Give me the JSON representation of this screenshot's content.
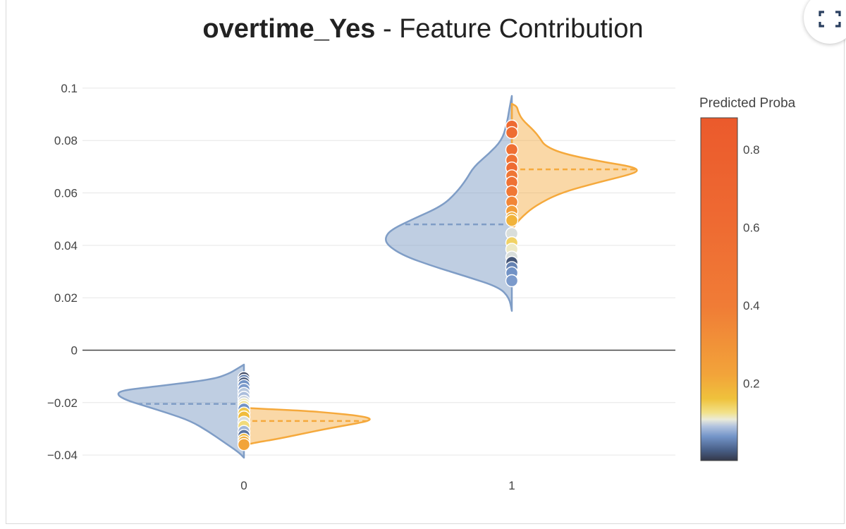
{
  "title": {
    "bold": "overtime_Yes",
    "rest": " - Feature Contribution"
  },
  "expand_icon": "expand-icon",
  "chart_data": {
    "type": "violin",
    "title": "overtime_Yes - Feature Contribution",
    "categories": [
      "0",
      "1"
    ],
    "ylim": [
      -0.044,
      0.104
    ],
    "yticks": [
      0.1,
      0.08,
      0.06,
      0.04,
      0.02,
      0,
      -0.02,
      -0.04
    ],
    "ytick_labels": [
      "0.1",
      "0.08",
      "0.06",
      "0.04",
      "0.02",
      "0",
      "−0.02",
      "−0.04"
    ],
    "grid": true,
    "zero_line": true,
    "violins": [
      {
        "category": "0",
        "side": "negative",
        "color": "#7f9dc6",
        "median": -0.0205,
        "profile": [
          [
            -0.041,
            0.0
          ],
          [
            -0.039,
            0.04
          ],
          [
            -0.035,
            0.16
          ],
          [
            -0.031,
            0.28
          ],
          [
            -0.027,
            0.42
          ],
          [
            -0.024,
            0.6
          ],
          [
            -0.021,
            0.8
          ],
          [
            -0.019,
            0.93
          ],
          [
            -0.017,
            1.0
          ],
          [
            -0.0155,
            0.97
          ],
          [
            -0.0145,
            0.82
          ],
          [
            -0.013,
            0.55
          ],
          [
            -0.011,
            0.24
          ],
          [
            -0.009,
            0.12
          ],
          [
            -0.007,
            0.05
          ],
          [
            -0.0055,
            0.0
          ]
        ]
      },
      {
        "category": "0",
        "side": "positive",
        "color": "#f5a93c",
        "median": -0.027,
        "profile": [
          [
            -0.0365,
            0.0
          ],
          [
            -0.0355,
            0.06
          ],
          [
            -0.034,
            0.25
          ],
          [
            -0.032,
            0.45
          ],
          [
            -0.03,
            0.65
          ],
          [
            -0.028,
            0.88
          ],
          [
            -0.027,
            0.98
          ],
          [
            -0.026,
            1.0
          ],
          [
            -0.025,
            0.9
          ],
          [
            -0.024,
            0.7
          ],
          [
            -0.0232,
            0.5
          ],
          [
            -0.0225,
            0.2
          ],
          [
            -0.022,
            0.0
          ]
        ]
      },
      {
        "category": "1",
        "side": "negative",
        "color": "#7f9dc6",
        "median": 0.048,
        "profile": [
          [
            0.015,
            0.0
          ],
          [
            0.02,
            0.02
          ],
          [
            0.024,
            0.1
          ],
          [
            0.028,
            0.35
          ],
          [
            0.032,
            0.62
          ],
          [
            0.036,
            0.85
          ],
          [
            0.04,
            0.98
          ],
          [
            0.043,
            1.0
          ],
          [
            0.046,
            0.95
          ],
          [
            0.05,
            0.78
          ],
          [
            0.055,
            0.55
          ],
          [
            0.06,
            0.44
          ],
          [
            0.065,
            0.36
          ],
          [
            0.07,
            0.3
          ],
          [
            0.075,
            0.18
          ],
          [
            0.08,
            0.08
          ],
          [
            0.086,
            0.04
          ],
          [
            0.092,
            0.02
          ],
          [
            0.097,
            0.0
          ]
        ]
      },
      {
        "category": "1",
        "side": "positive",
        "color": "#f5a93c",
        "median": 0.069,
        "profile": [
          [
            0.046,
            0.0
          ],
          [
            0.05,
            0.06
          ],
          [
            0.055,
            0.18
          ],
          [
            0.06,
            0.38
          ],
          [
            0.064,
            0.68
          ],
          [
            0.067,
            0.93
          ],
          [
            0.0685,
            1.0
          ],
          [
            0.07,
            0.95
          ],
          [
            0.072,
            0.7
          ],
          [
            0.075,
            0.4
          ],
          [
            0.078,
            0.26
          ],
          [
            0.081,
            0.22
          ],
          [
            0.084,
            0.17
          ],
          [
            0.088,
            0.08
          ],
          [
            0.091,
            0.05
          ],
          [
            0.093,
            0.04
          ],
          [
            0.094,
            0.0
          ]
        ]
      }
    ],
    "points": [
      {
        "category": "0",
        "y": -0.0105,
        "p": 0.01
      },
      {
        "category": "0",
        "y": -0.0115,
        "p": 0.05
      },
      {
        "category": "0",
        "y": -0.0125,
        "p": 0.02
      },
      {
        "category": "0",
        "y": -0.0135,
        "p": 0.06
      },
      {
        "category": "0",
        "y": -0.015,
        "p": 0.065
      },
      {
        "category": "0",
        "y": -0.0165,
        "p": 0.09
      },
      {
        "category": "0",
        "y": -0.018,
        "p": 0.085
      },
      {
        "category": "0",
        "y": -0.0195,
        "p": 0.095
      },
      {
        "category": "0",
        "y": -0.0205,
        "p": 0.11
      },
      {
        "category": "0",
        "y": -0.0215,
        "p": 0.12
      },
      {
        "category": "0",
        "y": -0.0225,
        "p": 0.06
      },
      {
        "category": "0",
        "y": -0.024,
        "p": 0.15
      },
      {
        "category": "0",
        "y": -0.0255,
        "p": 0.17
      },
      {
        "category": "0",
        "y": -0.0275,
        "p": 0.1
      },
      {
        "category": "0",
        "y": -0.029,
        "p": 0.13
      },
      {
        "category": "0",
        "y": -0.031,
        "p": 0.08
      },
      {
        "category": "0",
        "y": -0.0325,
        "p": 0.04
      },
      {
        "category": "0",
        "y": -0.034,
        "p": 0.18
      },
      {
        "category": "0",
        "y": -0.035,
        "p": 0.2
      },
      {
        "category": "0",
        "y": -0.036,
        "p": 0.22
      },
      {
        "category": "1",
        "y": 0.0855,
        "p": 0.62
      },
      {
        "category": "1",
        "y": 0.083,
        "p": 0.58
      },
      {
        "category": "1",
        "y": 0.0765,
        "p": 0.55
      },
      {
        "category": "1",
        "y": 0.0725,
        "p": 0.5
      },
      {
        "category": "1",
        "y": 0.0695,
        "p": 0.6
      },
      {
        "category": "1",
        "y": 0.0665,
        "p": 0.47
      },
      {
        "category": "1",
        "y": 0.064,
        "p": 0.52
      },
      {
        "category": "1",
        "y": 0.0605,
        "p": 0.45
      },
      {
        "category": "1",
        "y": 0.0565,
        "p": 0.35
      },
      {
        "category": "1",
        "y": 0.053,
        "p": 0.25
      },
      {
        "category": "1",
        "y": 0.0505,
        "p": 0.2
      },
      {
        "category": "1",
        "y": 0.0495,
        "p": 0.19
      },
      {
        "category": "1",
        "y": 0.0445,
        "p": 0.1
      },
      {
        "category": "1",
        "y": 0.041,
        "p": 0.14
      },
      {
        "category": "1",
        "y": 0.0385,
        "p": 0.11
      },
      {
        "category": "1",
        "y": 0.0355,
        "p": 0.1
      },
      {
        "category": "1",
        "y": 0.0335,
        "p": 0.02
      },
      {
        "category": "1",
        "y": 0.0315,
        "p": 0.05
      },
      {
        "category": "1",
        "y": 0.0295,
        "p": 0.06
      },
      {
        "category": "1",
        "y": 0.0265,
        "p": 0.065
      }
    ],
    "colorbar": {
      "title": "Predicted Proba",
      "range": [
        0.0,
        0.88
      ],
      "ticks": [
        0.8,
        0.6,
        0.4,
        0.2
      ],
      "tick_labels": [
        "0.8",
        "0.6",
        "0.4",
        "0.2"
      ],
      "colorscale": [
        [
          0.0,
          "#34384a"
        ],
        [
          0.03,
          "#485e86"
        ],
        [
          0.07,
          "#7394c8"
        ],
        [
          0.1,
          "#b2c3df"
        ],
        [
          0.12,
          "#ebebd9"
        ],
        [
          0.14,
          "#f2e18a"
        ],
        [
          0.18,
          "#efc23c"
        ],
        [
          0.25,
          "#f2a43a"
        ],
        [
          0.45,
          "#f07c36"
        ],
        [
          0.7,
          "#ee6a32"
        ],
        [
          1.0,
          "#eb5a2c"
        ]
      ]
    }
  }
}
